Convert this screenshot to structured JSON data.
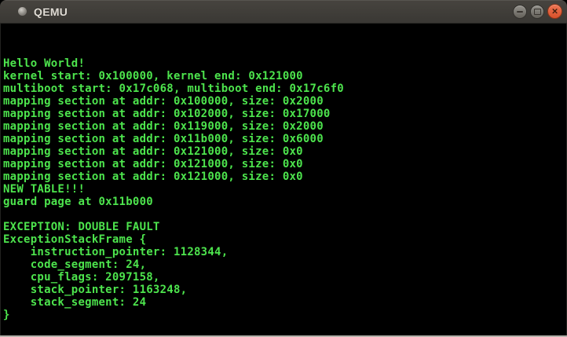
{
  "window": {
    "title": "QEMU",
    "controls": {
      "minimize_label": "minimize",
      "maximize_label": "maximize",
      "close_label": "close",
      "close_glyph": "×"
    }
  },
  "terminal": {
    "lines": [
      "",
      "",
      "Hello World!",
      "kernel start: 0x100000, kernel end: 0x121000",
      "multiboot start: 0x17c068, multiboot end: 0x17c6f0",
      "mapping section at addr: 0x100000, size: 0x2000",
      "mapping section at addr: 0x102000, size: 0x17000",
      "mapping section at addr: 0x119000, size: 0x2000",
      "mapping section at addr: 0x11b000, size: 0x6000",
      "mapping section at addr: 0x121000, size: 0x0",
      "mapping section at addr: 0x121000, size: 0x0",
      "mapping section at addr: 0x121000, size: 0x0",
      "NEW TABLE!!!",
      "guard page at 0x11b000",
      "",
      "EXCEPTION: DOUBLE FAULT",
      "ExceptionStackFrame {",
      "    instruction_pointer: 1128344,",
      "    code_segment: 24,",
      "    cpu_flags: 2097158,",
      "    stack_pointer: 1163248,",
      "    stack_segment: 24",
      "}"
    ]
  },
  "theme": {
    "terminal_bg": "#000000",
    "terminal_green": "#4de44d",
    "titlebar_top": "#47443f",
    "titlebar_bottom": "#3a3834",
    "title_text": "#dfdbd4",
    "button_gray_top": "#94928c",
    "button_gray_bottom": "#636059",
    "close_button_top": "#ee7452",
    "close_button_bottom": "#d8512a",
    "bottom_border": "#b4b1aa"
  }
}
